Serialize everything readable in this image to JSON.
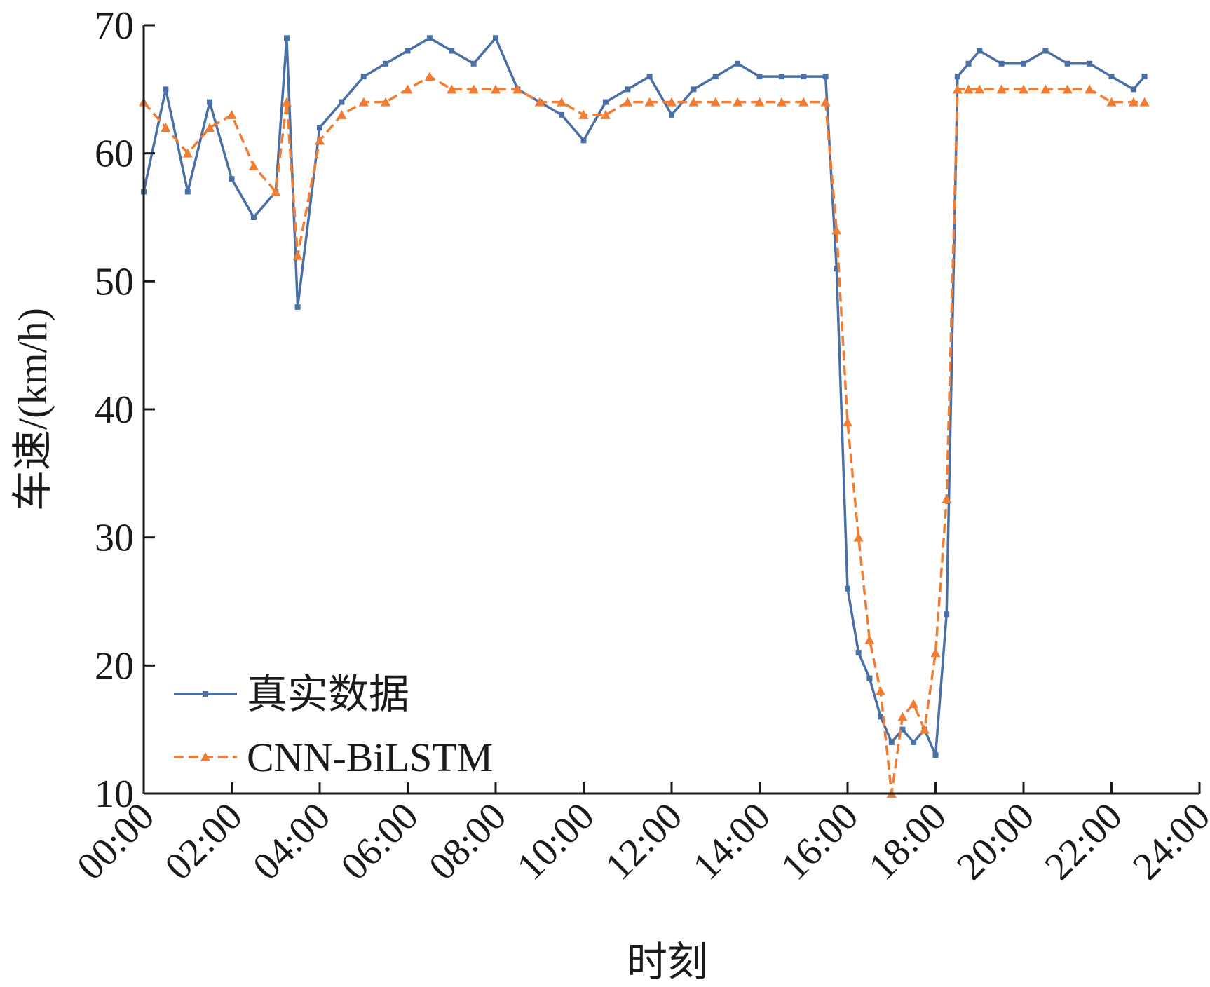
{
  "chart_data": {
    "type": "line",
    "title": "",
    "xlabel": "时刻",
    "ylabel": "车速/(km/h)",
    "xlim": [
      "00:00",
      "24:00"
    ],
    "ylim": [
      10,
      70
    ],
    "x_ticks": [
      "00:00",
      "02:00",
      "04:00",
      "06:00",
      "08:00",
      "10:00",
      "12:00",
      "14:00",
      "16:00",
      "18:00",
      "20:00",
      "22:00",
      "24:00"
    ],
    "y_ticks": [
      10,
      20,
      30,
      40,
      50,
      60,
      70
    ],
    "grid": false,
    "legend_position": "bottom-left",
    "x": [
      "00:00",
      "00:30",
      "01:00",
      "01:30",
      "02:00",
      "02:30",
      "03:00",
      "03:15",
      "03:30",
      "04:00",
      "04:30",
      "05:00",
      "05:30",
      "06:00",
      "06:30",
      "07:00",
      "07:30",
      "08:00",
      "08:30",
      "09:00",
      "09:30",
      "10:00",
      "10:30",
      "11:00",
      "11:30",
      "12:00",
      "12:30",
      "13:00",
      "13:30",
      "14:00",
      "14:30",
      "15:00",
      "15:30",
      "15:45",
      "16:00",
      "16:15",
      "16:30",
      "16:45",
      "17:00",
      "17:15",
      "17:30",
      "17:45",
      "18:00",
      "18:15",
      "18:30",
      "18:45",
      "19:00",
      "19:30",
      "20:00",
      "20:30",
      "21:00",
      "21:30",
      "22:00",
      "22:30",
      "22:45"
    ],
    "series": [
      {
        "name": "真实数据",
        "color": "#4a6fa5",
        "style": "solid",
        "marker": "square",
        "values": [
          57,
          65,
          57,
          64,
          58,
          55,
          57,
          69,
          48,
          62,
          64,
          66,
          67,
          68,
          69,
          68,
          67,
          69,
          65,
          64,
          63,
          61,
          64,
          65,
          66,
          63,
          65,
          66,
          67,
          66,
          66,
          66,
          66,
          51,
          26,
          21,
          19,
          16,
          14,
          15,
          14,
          15,
          13,
          24,
          66,
          67,
          68,
          67,
          67,
          68,
          67,
          67,
          66,
          65,
          66
        ]
      },
      {
        "name": "CNN-BiLSTM",
        "color": "#f07d33",
        "style": "dashed",
        "marker": "triangle",
        "values": [
          64,
          62,
          60,
          62,
          63,
          59,
          57,
          64,
          52,
          61,
          63,
          64,
          64,
          65,
          66,
          65,
          65,
          65,
          65,
          64,
          64,
          63,
          63,
          64,
          64,
          64,
          64,
          64,
          64,
          64,
          64,
          64,
          64,
          54,
          39,
          30,
          22,
          18,
          10,
          16,
          17,
          15,
          21,
          33,
          65,
          65,
          65,
          65,
          65,
          65,
          65,
          65,
          64,
          64,
          64
        ]
      }
    ]
  }
}
